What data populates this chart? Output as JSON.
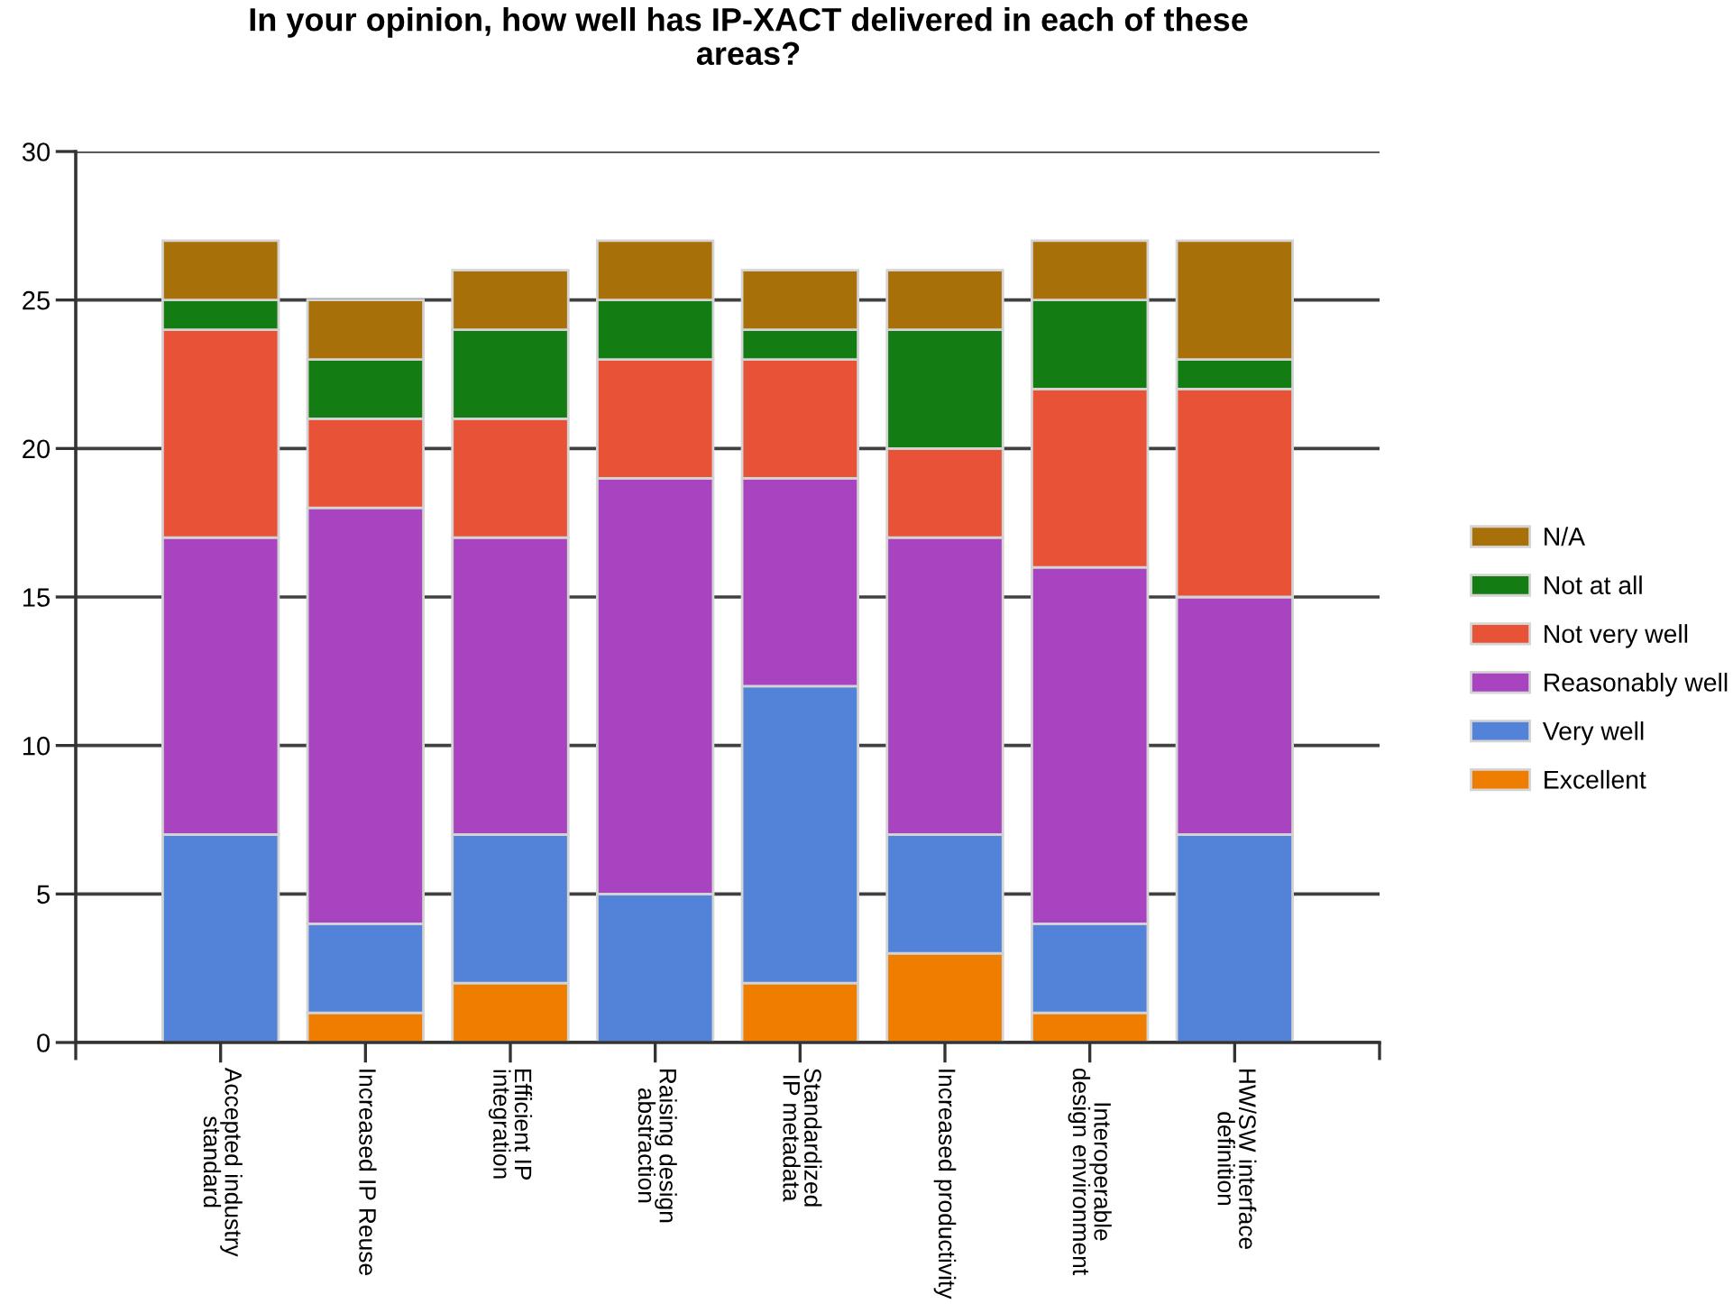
{
  "chart_data": {
    "type": "bar",
    "title": "In your opinion, how well has IP-XACT delivered in each of these\nareas?",
    "categories": [
      "Accepted industry\nstandard",
      "Increased IP Reuse",
      "Efficient IP\nintegration",
      "Raising design\nabstraction",
      "Standardized\nIP metadata",
      "Increased productivity",
      "Interoperable\ndesign environment",
      "HW/SW interface\ndefinition"
    ],
    "stacked": true,
    "ylim": [
      0,
      30
    ],
    "yticks": [
      0,
      5,
      10,
      15,
      20,
      25,
      30
    ],
    "grid": "y",
    "legend": "right",
    "series": [
      {
        "name": "Excellent",
        "color": "#ee7d00",
        "values": [
          0,
          1,
          2,
          0,
          2,
          3,
          1,
          0
        ]
      },
      {
        "name": "Very well",
        "color": "#5283d8",
        "values": [
          7,
          3,
          5,
          5,
          10,
          4,
          3,
          7
        ]
      },
      {
        "name": "Reasonably well",
        "color": "#a844c0",
        "values": [
          10,
          14,
          10,
          14,
          7,
          10,
          12,
          8
        ]
      },
      {
        "name": "Not very well",
        "color": "#e85236",
        "values": [
          7,
          3,
          4,
          4,
          4,
          3,
          6,
          7
        ]
      },
      {
        "name": "Not at all",
        "color": "#137c13",
        "values": [
          1,
          2,
          3,
          2,
          1,
          4,
          3,
          1
        ]
      },
      {
        "name": "N/A",
        "color": "#a87008",
        "values": [
          2,
          2,
          2,
          2,
          2,
          2,
          2,
          4
        ]
      }
    ]
  }
}
